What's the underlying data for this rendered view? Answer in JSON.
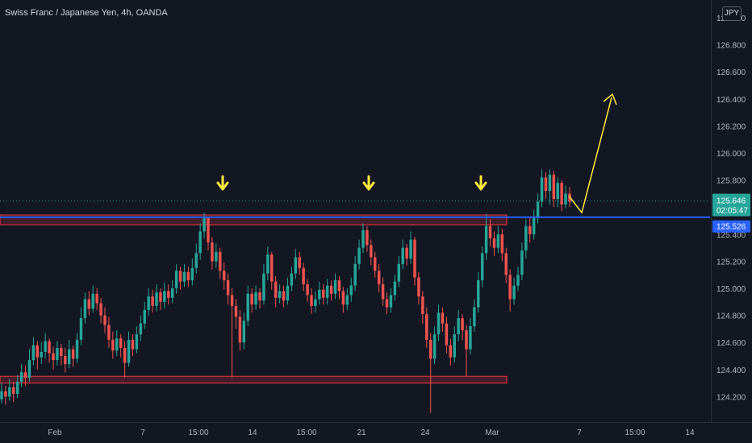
{
  "header": {
    "title": "Swiss Franc / Japanese Yen, 4h, OANDA",
    "currency_button": "JPY"
  },
  "colors": {
    "background": "#131722",
    "up": "#26a69a",
    "down": "#ef5350",
    "zone_stroke": "#f23645",
    "zone_fill": "rgba(242,54,69,0.22)",
    "support_line": "#2962ff",
    "annotation": "#ffeb3b",
    "axis_text": "#b2b5be"
  },
  "chart_data": {
    "type": "candlestick",
    "title": "Swiss Franc / Japanese Yen, 4h, OANDA",
    "ylim": [
      124.05,
      127.1
    ],
    "y_ticks": [
      "127.000",
      "126.800",
      "126.600",
      "126.400",
      "126.200",
      "126.000",
      "125.800",
      "125.400",
      "125.200",
      "125.000",
      "124.800",
      "124.600",
      "124.400",
      "124.200"
    ],
    "x_ticks": [
      "Feb",
      "7",
      "15:00",
      "14",
      "15:00",
      "21",
      "24",
      "Mar",
      "7",
      "15:00",
      "14"
    ],
    "last_price": "125.646",
    "countdown": "02:05:47",
    "support_price_label": "125.526",
    "support_level": 125.526,
    "resistance_zone": [
      125.47,
      125.53
    ],
    "support_zone": [
      124.3,
      124.35
    ],
    "arrow_markers": [
      "on resistance",
      "on resistance",
      "on resistance"
    ],
    "projection": "down then up",
    "candles": [
      [
        124.18,
        124.24,
        124.3,
        124.15
      ],
      [
        124.24,
        124.2,
        124.28,
        124.14
      ],
      [
        124.2,
        124.27,
        124.33,
        124.17
      ],
      [
        124.27,
        124.22,
        124.31,
        124.16
      ],
      [
        124.22,
        124.31,
        124.36,
        124.19
      ],
      [
        124.31,
        124.38,
        124.44,
        124.27
      ],
      [
        124.38,
        124.34,
        124.43,
        124.28
      ],
      [
        124.34,
        124.47,
        124.55,
        124.31
      ],
      [
        124.47,
        124.58,
        124.64,
        124.43
      ],
      [
        124.58,
        124.49,
        124.61,
        124.4
      ],
      [
        124.49,
        124.53,
        124.6,
        124.44
      ],
      [
        124.53,
        124.61,
        124.67,
        124.48
      ],
      [
        124.61,
        124.52,
        124.63,
        124.45
      ],
      [
        124.52,
        124.47,
        124.57,
        124.4
      ],
      [
        124.47,
        124.56,
        124.61,
        124.43
      ],
      [
        124.56,
        124.5,
        124.59,
        124.43
      ],
      [
        124.5,
        124.44,
        124.56,
        124.38
      ],
      [
        124.44,
        124.55,
        124.62,
        124.41
      ],
      [
        124.55,
        124.48,
        124.58,
        124.42
      ],
      [
        124.48,
        124.62,
        124.67,
        124.45
      ],
      [
        124.62,
        124.78,
        124.86,
        124.58
      ],
      [
        124.78,
        124.92,
        124.97,
        124.74
      ],
      [
        124.92,
        124.85,
        124.98,
        124.8
      ],
      [
        124.85,
        124.96,
        125.02,
        124.82
      ],
      [
        124.96,
        124.89,
        125.0,
        124.84
      ],
      [
        124.89,
        124.8,
        124.93,
        124.74
      ],
      [
        124.8,
        124.73,
        124.86,
        124.67
      ],
      [
        124.73,
        124.62,
        124.79,
        124.56
      ],
      [
        124.62,
        124.54,
        124.68,
        124.48
      ],
      [
        124.54,
        124.63,
        124.69,
        124.5
      ],
      [
        124.63,
        124.56,
        124.66,
        124.49
      ],
      [
        124.56,
        124.45,
        124.61,
        124.34
      ],
      [
        124.45,
        124.62,
        124.68,
        124.42
      ],
      [
        124.62,
        124.55,
        124.66,
        124.5
      ],
      [
        124.55,
        124.66,
        124.72,
        124.52
      ],
      [
        124.66,
        124.74,
        124.8,
        124.61
      ],
      [
        124.74,
        124.84,
        124.9,
        124.7
      ],
      [
        124.84,
        124.94,
        125.0,
        124.8
      ],
      [
        124.94,
        124.87,
        124.99,
        124.82
      ],
      [
        124.87,
        124.97,
        125.03,
        124.83
      ],
      [
        124.97,
        124.9,
        125.0,
        124.84
      ],
      [
        124.9,
        124.98,
        125.04,
        124.85
      ],
      [
        124.98,
        124.93,
        125.03,
        124.88
      ],
      [
        124.93,
        125.0,
        125.06,
        124.89
      ],
      [
        125.0,
        125.13,
        125.18,
        124.96
      ],
      [
        125.13,
        125.05,
        125.16,
        124.99
      ],
      [
        125.05,
        125.12,
        125.18,
        125.01
      ],
      [
        125.12,
        125.06,
        125.16,
        125.01
      ],
      [
        125.06,
        125.15,
        125.22,
        125.02
      ],
      [
        125.15,
        125.26,
        125.33,
        125.11
      ],
      [
        125.26,
        125.42,
        125.48,
        125.21
      ],
      [
        125.42,
        125.52,
        125.56,
        125.37
      ],
      [
        125.52,
        125.34,
        125.53,
        125.28
      ],
      [
        125.34,
        125.2,
        125.38,
        125.14
      ],
      [
        125.2,
        125.27,
        125.33,
        125.15
      ],
      [
        125.27,
        125.13,
        125.3,
        125.07
      ],
      [
        125.13,
        125.06,
        125.19,
        124.99
      ],
      [
        125.06,
        124.95,
        125.11,
        124.88
      ],
      [
        124.95,
        124.87,
        125.0,
        124.34
      ],
      [
        124.87,
        124.79,
        124.92,
        124.7
      ],
      [
        124.79,
        124.6,
        124.84,
        124.54
      ],
      [
        124.6,
        124.76,
        124.82,
        124.55
      ],
      [
        124.76,
        124.96,
        125.02,
        124.72
      ],
      [
        124.96,
        124.88,
        125.0,
        124.82
      ],
      [
        124.88,
        124.97,
        125.02,
        124.84
      ],
      [
        124.97,
        124.91,
        125.0,
        124.85
      ],
      [
        124.91,
        125.11,
        125.18,
        124.88
      ],
      [
        125.11,
        125.25,
        125.31,
        125.06
      ],
      [
        125.25,
        125.05,
        125.27,
        124.99
      ],
      [
        125.05,
        124.93,
        125.09,
        124.86
      ],
      [
        124.93,
        124.98,
        125.03,
        124.89
      ],
      [
        124.98,
        124.91,
        125.02,
        124.86
      ],
      [
        124.91,
        125.02,
        125.08,
        124.88
      ],
      [
        125.02,
        125.11,
        125.16,
        124.98
      ],
      [
        125.11,
        125.23,
        125.29,
        125.07
      ],
      [
        125.23,
        125.15,
        125.27,
        125.1
      ],
      [
        125.15,
        125.03,
        125.19,
        124.98
      ],
      [
        125.03,
        124.95,
        125.07,
        124.9
      ],
      [
        124.95,
        124.87,
        125.0,
        124.81
      ],
      [
        124.87,
        124.92,
        124.98,
        124.82
      ],
      [
        124.92,
        124.99,
        125.05,
        124.88
      ],
      [
        124.99,
        124.93,
        125.03,
        124.88
      ],
      [
        124.93,
        125.02,
        125.07,
        124.88
      ],
      [
        125.02,
        124.96,
        125.06,
        124.91
      ],
      [
        124.96,
        125.06,
        125.11,
        124.92
      ],
      [
        125.06,
        124.98,
        125.09,
        124.92
      ],
      [
        124.98,
        124.88,
        125.01,
        124.82
      ],
      [
        124.88,
        124.95,
        125.0,
        124.84
      ],
      [
        124.95,
        125.02,
        125.08,
        124.9
      ],
      [
        125.02,
        125.18,
        125.24,
        124.98
      ],
      [
        125.18,
        125.3,
        125.36,
        125.14
      ],
      [
        125.3,
        125.43,
        125.48,
        125.26
      ],
      [
        125.43,
        125.32,
        125.46,
        125.27
      ],
      [
        125.32,
        125.23,
        125.36,
        125.17
      ],
      [
        125.23,
        125.13,
        125.27,
        125.08
      ],
      [
        125.13,
        125.03,
        125.18,
        124.97
      ],
      [
        125.03,
        124.92,
        125.08,
        124.87
      ],
      [
        124.92,
        124.86,
        124.97,
        124.81
      ],
      [
        124.86,
        124.95,
        125.0,
        124.82
      ],
      [
        124.95,
        125.05,
        125.1,
        124.91
      ],
      [
        125.05,
        125.18,
        125.24,
        125.01
      ],
      [
        125.18,
        125.3,
        125.36,
        125.14
      ],
      [
        125.3,
        125.22,
        125.33,
        125.17
      ],
      [
        125.22,
        125.36,
        125.42,
        125.18
      ],
      [
        125.36,
        125.08,
        125.38,
        125.02
      ],
      [
        125.08,
        124.94,
        125.12,
        124.88
      ],
      [
        124.94,
        124.81,
        124.98,
        124.74
      ],
      [
        124.81,
        124.62,
        124.86,
        124.56
      ],
      [
        124.62,
        124.48,
        124.67,
        124.08
      ],
      [
        124.48,
        124.66,
        124.72,
        124.44
      ],
      [
        124.66,
        124.82,
        124.88,
        124.61
      ],
      [
        124.82,
        124.74,
        124.86,
        124.68
      ],
      [
        124.74,
        124.58,
        124.79,
        124.52
      ],
      [
        124.58,
        124.49,
        124.63,
        124.43
      ],
      [
        124.49,
        124.66,
        124.72,
        124.45
      ],
      [
        124.66,
        124.78,
        124.84,
        124.61
      ],
      [
        124.78,
        124.69,
        124.81,
        124.62
      ],
      [
        124.69,
        124.55,
        124.73,
        124.35
      ],
      [
        124.55,
        124.72,
        124.78,
        124.51
      ],
      [
        124.72,
        124.86,
        124.92,
        124.68
      ],
      [
        124.86,
        125.06,
        125.12,
        124.82
      ],
      [
        125.06,
        125.26,
        125.31,
        125.01
      ],
      [
        125.26,
        125.46,
        125.55,
        125.21
      ],
      [
        125.46,
        125.37,
        125.51,
        125.31
      ],
      [
        125.37,
        125.3,
        125.42,
        125.24
      ],
      [
        125.3,
        125.4,
        125.46,
        125.26
      ],
      [
        125.4,
        125.26,
        125.44,
        125.2
      ],
      [
        125.26,
        125.1,
        125.3,
        125.04
      ],
      [
        125.1,
        124.92,
        125.14,
        124.83
      ],
      [
        124.92,
        125.02,
        125.08,
        124.88
      ],
      [
        125.02,
        125.1,
        125.16,
        124.98
      ],
      [
        125.1,
        125.28,
        125.34,
        125.06
      ],
      [
        125.28,
        125.46,
        125.51,
        125.22
      ],
      [
        125.46,
        125.4,
        125.52,
        125.34
      ],
      [
        125.4,
        125.52,
        125.58,
        125.36
      ],
      [
        125.52,
        125.64,
        125.7,
        125.48
      ],
      [
        125.64,
        125.82,
        125.88,
        125.6
      ],
      [
        125.82,
        125.72,
        125.86,
        125.66
      ],
      [
        125.72,
        125.84,
        125.88,
        125.62
      ],
      [
        125.84,
        125.66,
        125.87,
        125.6
      ],
      [
        125.66,
        125.78,
        125.82,
        125.6
      ],
      [
        125.78,
        125.62,
        125.8,
        125.57
      ],
      [
        125.62,
        125.7,
        125.76,
        125.59
      ],
      [
        125.7,
        125.64,
        125.75,
        125.6
      ]
    ]
  },
  "price_axis": {
    "last_price": "125.646",
    "countdown": "02:05:47",
    "support_label": "125.526"
  }
}
